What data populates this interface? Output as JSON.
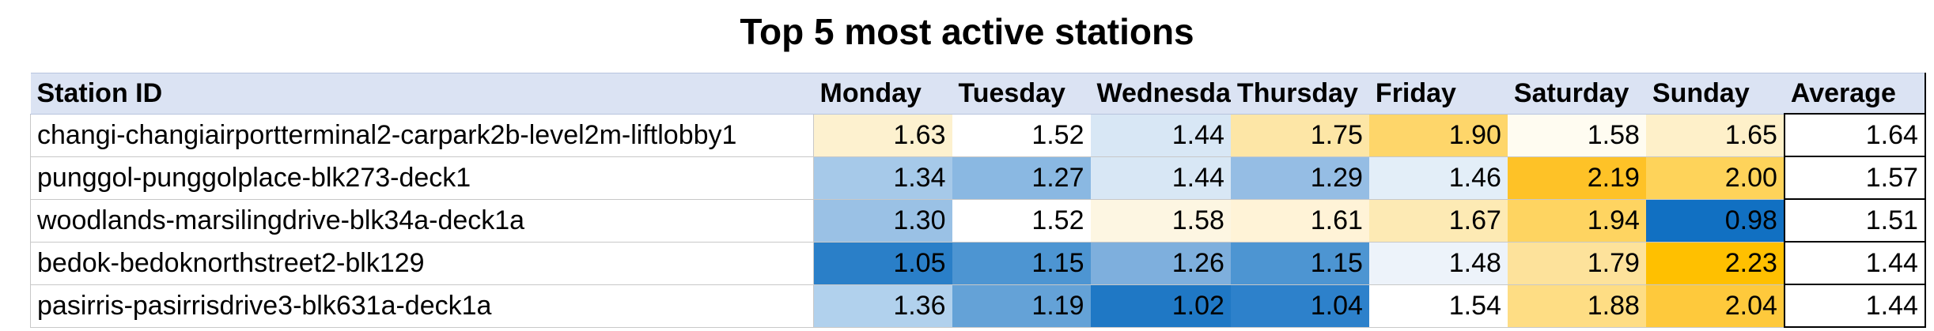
{
  "chart_data": {
    "type": "table",
    "title": "Top 5 most active stations",
    "columns": [
      "Station ID",
      "Monday",
      "Tuesday",
      "Wednesday",
      "Thursday",
      "Friday",
      "Saturday",
      "Sunday",
      "Average"
    ],
    "header_labels": [
      "Station ID",
      "Monday",
      "Tuesday",
      "Wednesda",
      "Thursday",
      "Friday",
      "Saturday",
      "Sunday",
      "Average"
    ],
    "rows": [
      {
        "station": "changi-changiairportterminal2-carpark2b-level2m-liftlobby1",
        "values": [
          "1.63",
          "1.52",
          "1.44",
          "1.75",
          "1.90",
          "1.58",
          "1.65"
        ],
        "average": "1.64",
        "colors": [
          "#fdf1cf",
          "#ffffff",
          "#d8e7f5",
          "#fde6a6",
          "#fed66a",
          "#fffcf1",
          "#fef0c9"
        ]
      },
      {
        "station": "punggol-punggolplace-blk273-deck1",
        "values": [
          "1.34",
          "1.27",
          "1.44",
          "1.29",
          "1.46",
          "2.19",
          "2.00"
        ],
        "average": "1.57",
        "colors": [
          "#a6c9e9",
          "#8ab8e2",
          "#d8e7f5",
          "#95bde4",
          "#e3eef8",
          "#fec227",
          "#fed35a"
        ]
      },
      {
        "station": "woodlands-marsilingdrive-blk34a-deck1a",
        "values": [
          "1.30",
          "1.52",
          "1.58",
          "1.61",
          "1.67",
          "1.94",
          "0.98"
        ],
        "average": "1.51",
        "colors": [
          "#9ac1e5",
          "#ffffff",
          "#fdf6e2",
          "#fff3d7",
          "#fdeab4",
          "#fed461",
          "#1170c2"
        ]
      },
      {
        "station": "bedok-bedoknorthstreet2-blk129",
        "values": [
          "1.05",
          "1.15",
          "1.26",
          "1.15",
          "1.48",
          "1.79",
          "2.23"
        ],
        "average": "1.44",
        "colors": [
          "#2a7fc8",
          "#4d95d2",
          "#7eafdd",
          "#4d95d2",
          "#edf3fa",
          "#fde29b",
          "#ffc000"
        ]
      },
      {
        "station": "pasirris-pasirrisdrive3-blk631a-deck1a",
        "values": [
          "1.36",
          "1.19",
          "1.02",
          "1.04",
          "1.54",
          "1.88",
          "2.04"
        ],
        "average": "1.44",
        "colors": [
          "#b1d1ed",
          "#64a2d7",
          "#1f78c5",
          "#2d81cb",
          "#ffffff",
          "#fedd84",
          "#fec93c"
        ]
      }
    ]
  }
}
